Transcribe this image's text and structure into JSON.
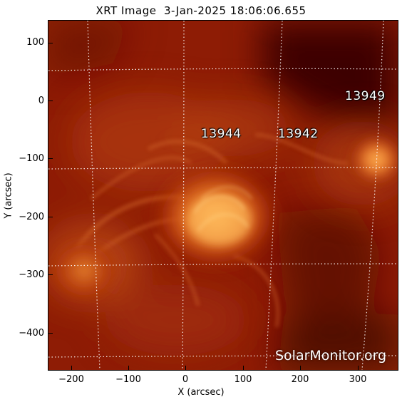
{
  "title": "XRT Image  3-Jan-2025 18:06:06.655",
  "axes": {
    "xlabel": "X (arcsec)",
    "ylabel": "Y (arcsec)",
    "xticks": [
      "−200",
      "−100",
      "0",
      "100",
      "200",
      "300"
    ],
    "yticks": [
      "100",
      "0",
      "−100",
      "−200",
      "−300",
      "−400"
    ]
  },
  "active_regions": [
    {
      "id": "13944"
    },
    {
      "id": "13942"
    },
    {
      "id": "13949"
    }
  ],
  "watermark": "SolarMonitor.org",
  "colors": {
    "background": "#8a1a05",
    "dark_region": "#4a0802",
    "bright_core": "#f5a040",
    "grid": "#ffffff"
  }
}
